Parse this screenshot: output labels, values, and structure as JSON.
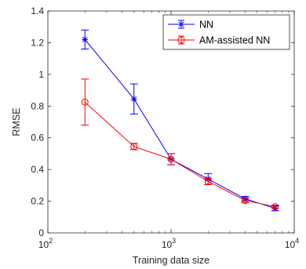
{
  "chart_data": {
    "type": "line",
    "title": "",
    "xlabel": "Training data size",
    "ylabel": "RMSE",
    "xscale": "log",
    "xlim": [
      100,
      10000
    ],
    "ylim": [
      0,
      1.4
    ],
    "xticks": [
      100,
      1000,
      10000
    ],
    "xtick_labels": [
      {
        "base": "10",
        "exp": "2"
      },
      {
        "base": "10",
        "exp": "3"
      },
      {
        "base": "10",
        "exp": "4"
      }
    ],
    "yticks": [
      0,
      0.2,
      0.4,
      0.6,
      0.8,
      1,
      1.2,
      1.4
    ],
    "ytick_labels": [
      "0",
      "0.2",
      "0.4",
      "0.6",
      "0.8",
      "1",
      "1.2",
      "1.4"
    ],
    "grid": false,
    "legend_position": "top-right",
    "x": [
      200,
      500,
      1000,
      2000,
      4000,
      7000
    ],
    "series": [
      {
        "name": "NN",
        "color": "#0000ff",
        "marker": "asterisk",
        "values": [
          1.22,
          0.845,
          0.465,
          0.34,
          0.215,
          0.155
        ],
        "errors": [
          0.06,
          0.095,
          0.035,
          0.035,
          0.015,
          0.015
        ]
      },
      {
        "name": "AM-assisted NN",
        "color": "#ff0000",
        "marker": "circle",
        "values": [
          0.825,
          0.545,
          0.465,
          0.325,
          0.205,
          0.165
        ],
        "errors": [
          0.145,
          0.02,
          0.035,
          0.02,
          0.015,
          0.01
        ]
      }
    ]
  }
}
